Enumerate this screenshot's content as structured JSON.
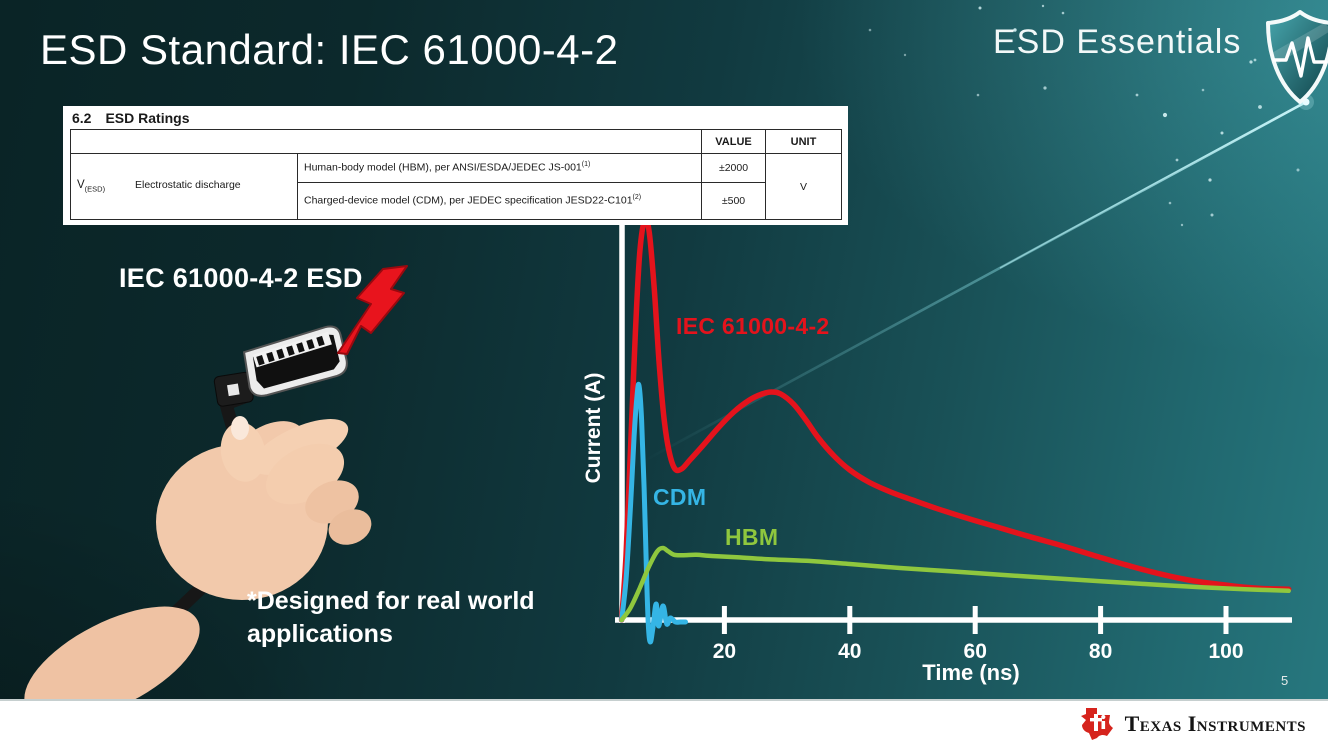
{
  "slide": {
    "title": "ESD Standard: IEC 61000-4-2",
    "program_badge": "ESD Essentials",
    "page_number": "5"
  },
  "table": {
    "section_number": "6.2",
    "section_title": "ESD Ratings",
    "col_headers": [
      "VALUE",
      "UNIT"
    ],
    "parameter_symbol": "V",
    "parameter_symbol_subscript": "(ESD)",
    "parameter_name": "Electrostatic discharge",
    "rows": [
      {
        "description": "Human-body model (HBM), per ANSI/ESDA/JEDEC JS-001",
        "superscript": "(1)",
        "value": "±2000"
      },
      {
        "description": "Charged-device model (CDM), per JEDEC specification JESD22-C101",
        "superscript": "(2)",
        "value": "±500"
      }
    ],
    "unit": "V"
  },
  "illustration": {
    "label": "IEC 61000-4-2 ESD",
    "footnote": "*Designed for real world\napplications"
  },
  "chart_data": {
    "type": "line",
    "title": "",
    "xlabel": "Time (ns)",
    "ylabel": "Current (A)",
    "x_ticks": [
      20,
      40,
      60,
      80,
      100
    ],
    "xlim": [
      0,
      110
    ],
    "y_ticks": [],
    "y_scale": "relative amplitude, no y tick labels shown (IEC peak = 1.0)",
    "grid": false,
    "legend_position": "inline-labels",
    "series": [
      {
        "name": "IEC 61000-4-2",
        "color": "#e4131c",
        "width": 5.5,
        "points": [
          [
            3.6,
            0
          ],
          [
            4.3,
            0.16
          ],
          [
            5.0,
            0.42
          ],
          [
            5.8,
            0.72
          ],
          [
            6.5,
            0.92
          ],
          [
            7.3,
            1.0
          ],
          [
            8.0,
            0.97
          ],
          [
            8.8,
            0.83
          ],
          [
            9.6,
            0.64
          ],
          [
            10.4,
            0.5
          ],
          [
            11.2,
            0.42
          ],
          [
            12.1,
            0.378
          ],
          [
            13.2,
            0.378
          ],
          [
            14.5,
            0.4
          ],
          [
            16.5,
            0.435
          ],
          [
            19,
            0.48
          ],
          [
            21.5,
            0.52
          ],
          [
            24,
            0.55
          ],
          [
            26,
            0.565
          ],
          [
            27.5,
            0.57
          ],
          [
            29,
            0.565
          ],
          [
            31,
            0.54
          ],
          [
            33,
            0.5
          ],
          [
            35,
            0.455
          ],
          [
            37.5,
            0.41
          ],
          [
            40,
            0.375
          ],
          [
            43,
            0.345
          ],
          [
            46.5,
            0.32
          ],
          [
            50,
            0.3
          ],
          [
            54,
            0.278
          ],
          [
            59,
            0.253
          ],
          [
            64,
            0.23
          ],
          [
            69,
            0.207
          ],
          [
            74,
            0.185
          ],
          [
            79,
            0.161
          ],
          [
            84,
            0.138
          ],
          [
            89,
            0.117
          ],
          [
            94,
            0.1
          ],
          [
            99,
            0.089
          ],
          [
            103,
            0.082
          ],
          [
            107,
            0.078
          ],
          [
            110,
            0.077
          ]
        ]
      },
      {
        "name": "CDM",
        "color": "#35b5e5",
        "width": 5,
        "points": [
          [
            3.6,
            0
          ],
          [
            4.3,
            0.1
          ],
          [
            5.0,
            0.28
          ],
          [
            5.6,
            0.46
          ],
          [
            6.1,
            0.565
          ],
          [
            6.4,
            0.585
          ],
          [
            6.8,
            0.5
          ],
          [
            7.2,
            0.33
          ],
          [
            7.6,
            0.1
          ],
          [
            7.9,
            -0.02
          ],
          [
            8.2,
            -0.055
          ],
          [
            8.6,
            -0.02
          ],
          [
            9.1,
            0.04
          ],
          [
            9.5,
            -0.015
          ],
          [
            10.2,
            0.035
          ],
          [
            10.8,
            -0.01
          ],
          [
            11.4,
            0.005
          ],
          [
            12.2,
            -0.005
          ],
          [
            13.0,
            -0.005
          ],
          [
            13.8,
            -0.005
          ]
        ]
      },
      {
        "name": "HBM",
        "color": "#8fc73e",
        "width": 4.5,
        "points": [
          [
            3.6,
            0
          ],
          [
            5,
            0.03
          ],
          [
            6.5,
            0.08
          ],
          [
            8,
            0.135
          ],
          [
            9.3,
            0.172
          ],
          [
            10.2,
            0.18
          ],
          [
            11,
            0.172
          ],
          [
            12,
            0.163
          ],
          [
            13.5,
            0.162
          ],
          [
            15.5,
            0.163
          ],
          [
            18,
            0.16
          ],
          [
            22,
            0.157
          ],
          [
            27,
            0.152
          ],
          [
            33,
            0.148
          ],
          [
            40,
            0.14
          ],
          [
            48,
            0.13
          ],
          [
            56,
            0.122
          ],
          [
            64,
            0.113
          ],
          [
            72,
            0.105
          ],
          [
            80,
            0.097
          ],
          [
            88,
            0.089
          ],
          [
            96,
            0.082
          ],
          [
            103,
            0.077
          ],
          [
            110,
            0.073
          ]
        ]
      }
    ]
  },
  "footer": {
    "brand": "Texas Instruments"
  }
}
